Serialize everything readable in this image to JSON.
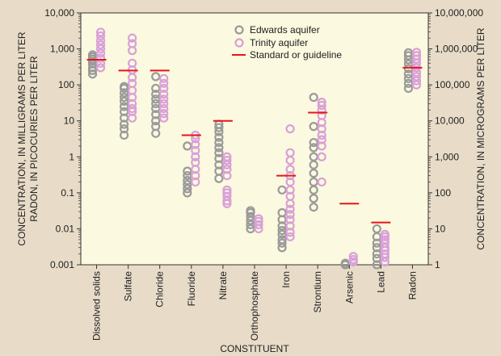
{
  "chart_data": {
    "type": "scatter",
    "xlabel": "CONSTITUENT",
    "ylabel_left_line1": "CONCENTRATION, IN MILLIGRAMS PER LITER",
    "ylabel_left_line2": "RADON, IN PICOCURIES PER LITER",
    "ylabel_right": "CONCENTRATION, IN MICROGRAMS PER LITER",
    "y_scale": "log",
    "ylim": [
      0.001,
      10000
    ],
    "y2lim": [
      1,
      10000000
    ],
    "y_ticks": [
      "0.001",
      "0.01",
      "0.1",
      "1",
      "10",
      "100",
      "1,000",
      "10,000"
    ],
    "y2_ticks": [
      "1",
      "10",
      "100",
      "1,000",
      "10,000",
      "100,000",
      "1,000,000",
      "10,000,000"
    ],
    "categories": [
      "Dissolved solids",
      "Sulfate",
      "Chloride",
      "Fluoride",
      "Nitrate",
      "Orthophosphate",
      "Iron",
      "Strontium",
      "Arsenic",
      "Lead",
      "Radon"
    ],
    "legend": {
      "placement": "top-center",
      "edwards": "Edwards aquifer",
      "trinity": "Trinity aquifer",
      "standard": "Standard or guideline"
    },
    "colors": {
      "edwards": "#9a9a9a",
      "trinity": "#d9a0d8",
      "standard": "#e8141c",
      "plot_bg": "#fbf9df",
      "page_bg": "#e8dcc8"
    },
    "series": [
      {
        "name": "Edwards aquifer",
        "marker": "circle",
        "values": [
          [
            200,
            250,
            300,
            380,
            450,
            520,
            600,
            680
          ],
          [
            4,
            6,
            8,
            12,
            18,
            25,
            35,
            45,
            60,
            80,
            90
          ],
          [
            4.5,
            7,
            10,
            15,
            22,
            30,
            40,
            55,
            80,
            170
          ],
          [
            0.1,
            0.13,
            0.17,
            0.22,
            0.3,
            0.4,
            2
          ],
          [
            0.25,
            0.4,
            0.6,
            0.9,
            1.3,
            1.8,
            2.5,
            3.5,
            5,
            6.5,
            8
          ],
          [
            0.01,
            0.013,
            0.017,
            0.022,
            0.028,
            0.032
          ],
          [
            0.003,
            0.004,
            0.005,
            0.007,
            0.009,
            0.012,
            0.018,
            0.028,
            0.12
          ],
          [
            0.04,
            0.07,
            0.12,
            0.2,
            0.35,
            0.6,
            1,
            1.8,
            2.5,
            7,
            45
          ],
          [
            0.001,
            0.0011
          ],
          [
            0.001,
            0.0015,
            0.002,
            0.003,
            0.004,
            0.006,
            0.01
          ],
          [
            80,
            110,
            150,
            200,
            280,
            380,
            500,
            650,
            780
          ]
        ]
      },
      {
        "name": "Trinity aquifer",
        "marker": "circle",
        "values": [
          [
            300,
            400,
            550,
            750,
            1000,
            1300,
            1700,
            2300,
            2900
          ],
          [
            12,
            18,
            22,
            30,
            45,
            70,
            110,
            160,
            260,
            400,
            900,
            1400,
            2000
          ],
          [
            12,
            16,
            22,
            30,
            40,
            55,
            80,
            110,
            150
          ],
          [
            0.2,
            0.3,
            0.45,
            0.7,
            1,
            1.5,
            2.2,
            3.2,
            4
          ],
          [
            0.05,
            0.06,
            0.08,
            0.1,
            0.12,
            0.3,
            0.45,
            0.6,
            0.8,
            1
          ],
          [
            0.01,
            0.013,
            0.016,
            0.019
          ],
          [
            0.006,
            0.008,
            0.012,
            0.018,
            0.025,
            0.035,
            0.05,
            0.08,
            0.12,
            0.2,
            0.3,
            0.45,
            0.8,
            1.3,
            6
          ],
          [
            0.2,
            1,
            2,
            3,
            4,
            6,
            9,
            14,
            20,
            27,
            33
          ],
          [
            0.0012,
            0.0014,
            0.0017
          ],
          [
            0.0012,
            0.0016,
            0.002,
            0.0025,
            0.003,
            0.004,
            0.005,
            0.006,
            0.007
          ],
          [
            100,
            130,
            170,
            220,
            300,
            400,
            520,
            650,
            800
          ]
        ]
      },
      {
        "name": "Standard or guideline",
        "marker": "line",
        "values": [
          500,
          250,
          250,
          4,
          10,
          null,
          0.3,
          17,
          0.05,
          0.015,
          300
        ]
      }
    ]
  }
}
